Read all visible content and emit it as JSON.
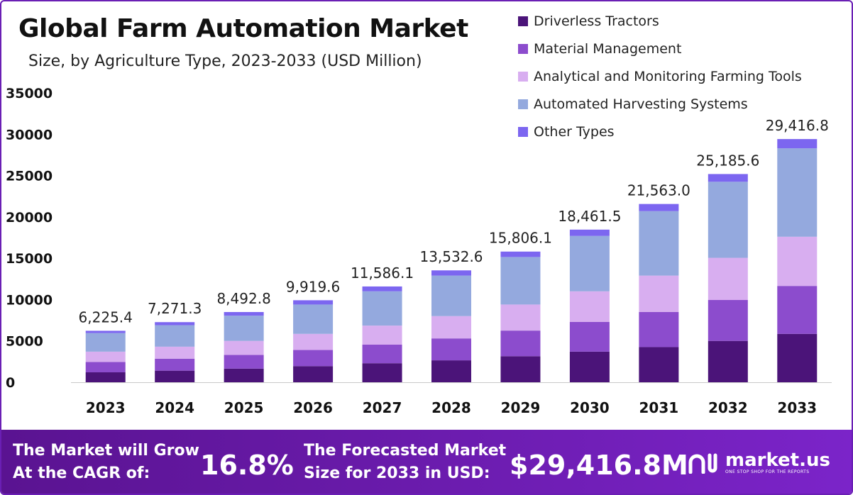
{
  "title": "Global Farm Automation Market",
  "subtitle": "Size, by Agriculture Type, 2023-2033 (USD Million)",
  "colors": {
    "driverless_tractors": "#4b1479",
    "material_management": "#8c4ccd",
    "analytical_monitoring": "#d8aef0",
    "automated_harvesting": "#94a9de",
    "other_types": "#7c66f0",
    "footer_start": "#5a1391",
    "footer_end": "#7b24c9"
  },
  "chart_data": {
    "type": "bar",
    "stacked": true,
    "categories": [
      "2023",
      "2024",
      "2025",
      "2026",
      "2027",
      "2028",
      "2029",
      "2030",
      "2031",
      "2032",
      "2033"
    ],
    "series": [
      {
        "name": "Driverless Tractors",
        "color": "#4b1479",
        "values": [
          1200,
          1400,
          1650,
          1950,
          2300,
          2650,
          3150,
          3700,
          4250,
          5000,
          5850
        ]
      },
      {
        "name": "Material Management",
        "color": "#8c4ccd",
        "values": [
          1250,
          1450,
          1650,
          1950,
          2250,
          2650,
          3100,
          3600,
          4250,
          4950,
          5800
        ]
      },
      {
        "name": "Analytical and Monitoring Farming Tools",
        "color": "#d8aef0",
        "values": [
          1250,
          1450,
          1700,
          1950,
          2300,
          2700,
          3150,
          3700,
          4400,
          5100,
          5950
        ]
      },
      {
        "name": "Automated Harvesting Systems",
        "color": "#94a9de",
        "values": [
          2250,
          2600,
          3050,
          3550,
          4150,
          4900,
          5750,
          6700,
          7800,
          9200,
          10700
        ]
      },
      {
        "name": "Other Types",
        "color": "#7c66f0",
        "values": [
          275.4,
          371.3,
          442.8,
          519.6,
          586.1,
          632.6,
          656.1,
          761.5,
          863.0,
          935.6,
          1116.8
        ]
      }
    ],
    "totals": [
      6225.4,
      7271.3,
      8492.8,
      9919.6,
      11586.1,
      13532.6,
      15806.1,
      18461.5,
      21563.0,
      25185.6,
      29416.8
    ],
    "total_labels": [
      "6,225.4",
      "7,271.3",
      "8,492.8",
      "9,919.6",
      "11,586.1",
      "13,532.6",
      "15,806.1",
      "18,461.5",
      "21,563.0",
      "25,185.6",
      "29,416.8"
    ],
    "yticks": [
      0,
      5000,
      10000,
      15000,
      20000,
      25000,
      30000,
      35000
    ],
    "ylim": [
      0,
      35000
    ],
    "xlabel": "",
    "ylabel": "",
    "legend_position": "top-right"
  },
  "footer": {
    "cagr_label_line1": "The Market will Grow",
    "cagr_label_line2": "At the CAGR of:",
    "cagr_value": "16.8%",
    "forecast_label_line1": "The Forecasted Market",
    "forecast_label_line2": "Size for 2033 in USD:",
    "forecast_value": "$29,416.8M",
    "brand_name": "market.us",
    "brand_tagline": "ONE STOP SHOP FOR THE REPORTS"
  }
}
